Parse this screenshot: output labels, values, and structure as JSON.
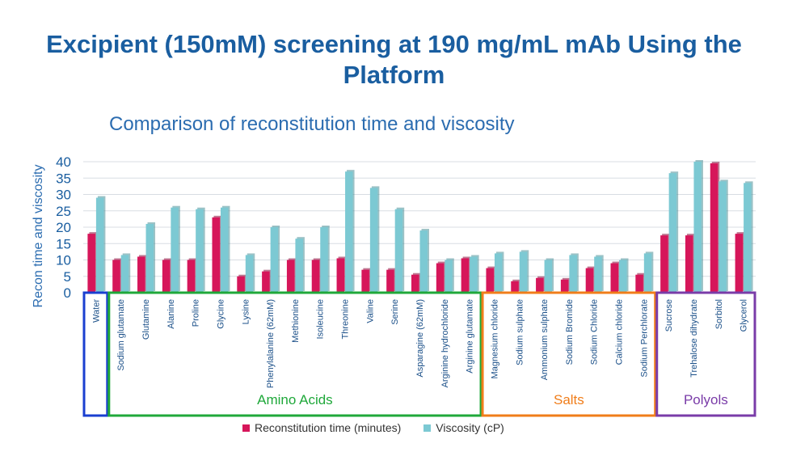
{
  "slide_title": "Excipient (150mM) screening at 190 mg/mL mAb Using the Platform",
  "chart_data": {
    "type": "bar",
    "title": "Comparison of reconstitution time and viscosity",
    "xlabel": "",
    "ylabel": "Recon time and viscosity",
    "ylim": [
      0,
      40
    ],
    "yticks": [
      0,
      5,
      10,
      15,
      20,
      25,
      30,
      35,
      40
    ],
    "grid": true,
    "legend_position": "bottom",
    "categories": [
      "Water",
      "Sodium glutamate",
      "Glutamine",
      "Alanine",
      "Proline",
      "Glycine",
      "Lysine",
      "Phenylalanine (62mM)",
      "Methionine",
      "Isoleucine",
      "Threonine",
      "Valine",
      "Serine",
      "Asparagine (62mM)",
      "Arginine hydrochloride",
      "Arginine glutamate",
      "Magnesium chloride",
      "Sodium sulphate",
      "Ammonium sulphate",
      "Sodium Bromide",
      "Sodium Chloride",
      "Calcium chloride",
      "Sodium Perchlorate",
      "Sucrose",
      "Trehalose dihydrate",
      "Sorbitol",
      "Glycerol"
    ],
    "series": [
      {
        "name": "Reconstitution time (minutes)",
        "color": "#d6165a",
        "values": [
          18,
          10,
          11,
          10,
          10,
          23,
          5,
          6.5,
          10,
          10,
          10.5,
          7,
          7,
          5.5,
          9,
          10.5,
          7.5,
          3.5,
          4.5,
          4,
          7.5,
          9,
          5.5,
          17.5,
          17.5,
          39.5,
          18
        ]
      },
      {
        "name": "Viscosity (cP)",
        "color": "#7cc9d3",
        "values": [
          29,
          11.5,
          21,
          26,
          25.5,
          26,
          11.5,
          20,
          16.5,
          20,
          37,
          32,
          25.5,
          19,
          10,
          11,
          12,
          12.5,
          10,
          11.5,
          11,
          10,
          12,
          36.5,
          40,
          34,
          33.5
        ]
      }
    ],
    "groups": [
      {
        "label": "",
        "color": "#1a3fd0",
        "from": 0,
        "to": 0
      },
      {
        "label": "Amino Acids",
        "color": "#1fa83a",
        "from": 1,
        "to": 15
      },
      {
        "label": "Salts",
        "color": "#f07d1a",
        "from": 16,
        "to": 22
      },
      {
        "label": "Polyols",
        "color": "#7a3ca8",
        "from": 23,
        "to": 26
      }
    ]
  }
}
